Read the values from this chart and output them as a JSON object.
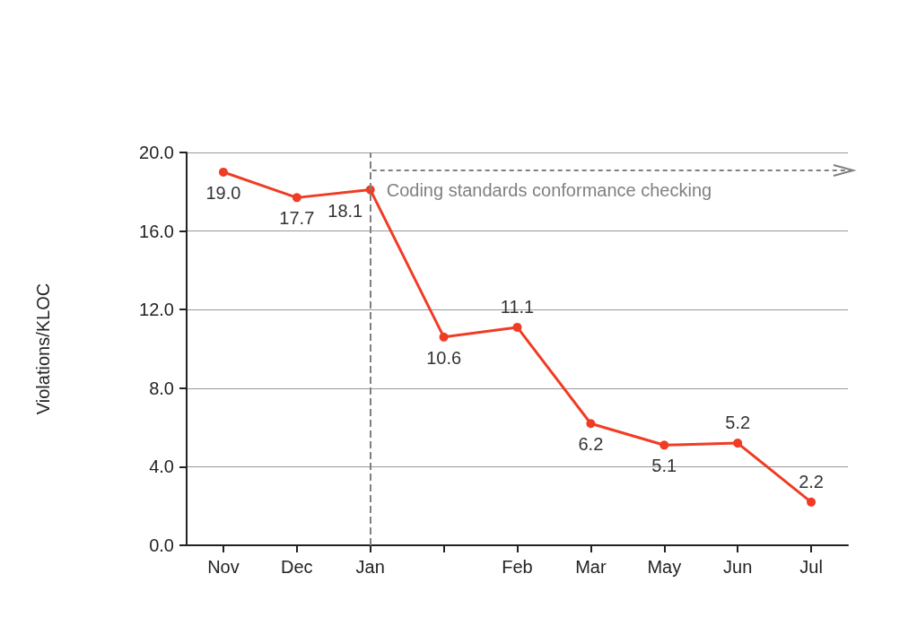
{
  "chart_data": {
    "type": "line",
    "ylabel": "Violations/KLOC",
    "categories": [
      "Nov",
      "Dec",
      "Jan",
      null,
      "Feb",
      "Mar",
      "May",
      "Jun",
      "Jul"
    ],
    "series": [
      {
        "color": "#f03c24",
        "values": [
          19.0,
          17.7,
          18.1,
          10.6,
          11.1,
          6.2,
          5.1,
          5.2,
          2.2
        ],
        "value_labels": [
          "19.0",
          "17.7",
          "18.1",
          "10.6",
          "11.1",
          "6.2",
          "5.1",
          "5.2",
          "2.2"
        ]
      }
    ],
    "ylim": [
      0,
      20
    ],
    "yticks": [
      {
        "value": 0,
        "label": "0.0"
      },
      {
        "value": 4,
        "label": "4.0"
      },
      {
        "value": 8,
        "label": "8.0"
      },
      {
        "value": 12,
        "label": "12.0"
      },
      {
        "value": 16,
        "label": "16.0"
      },
      {
        "value": 20,
        "label": "20.0"
      }
    ],
    "ref_lines": [
      {
        "axis": "x",
        "value": "Jan",
        "label": "Coding standards conformance checking",
        "color": "#808080",
        "line_style": "dashed"
      }
    ],
    "grid": "y",
    "marker": "circle",
    "line_style": "solid"
  }
}
